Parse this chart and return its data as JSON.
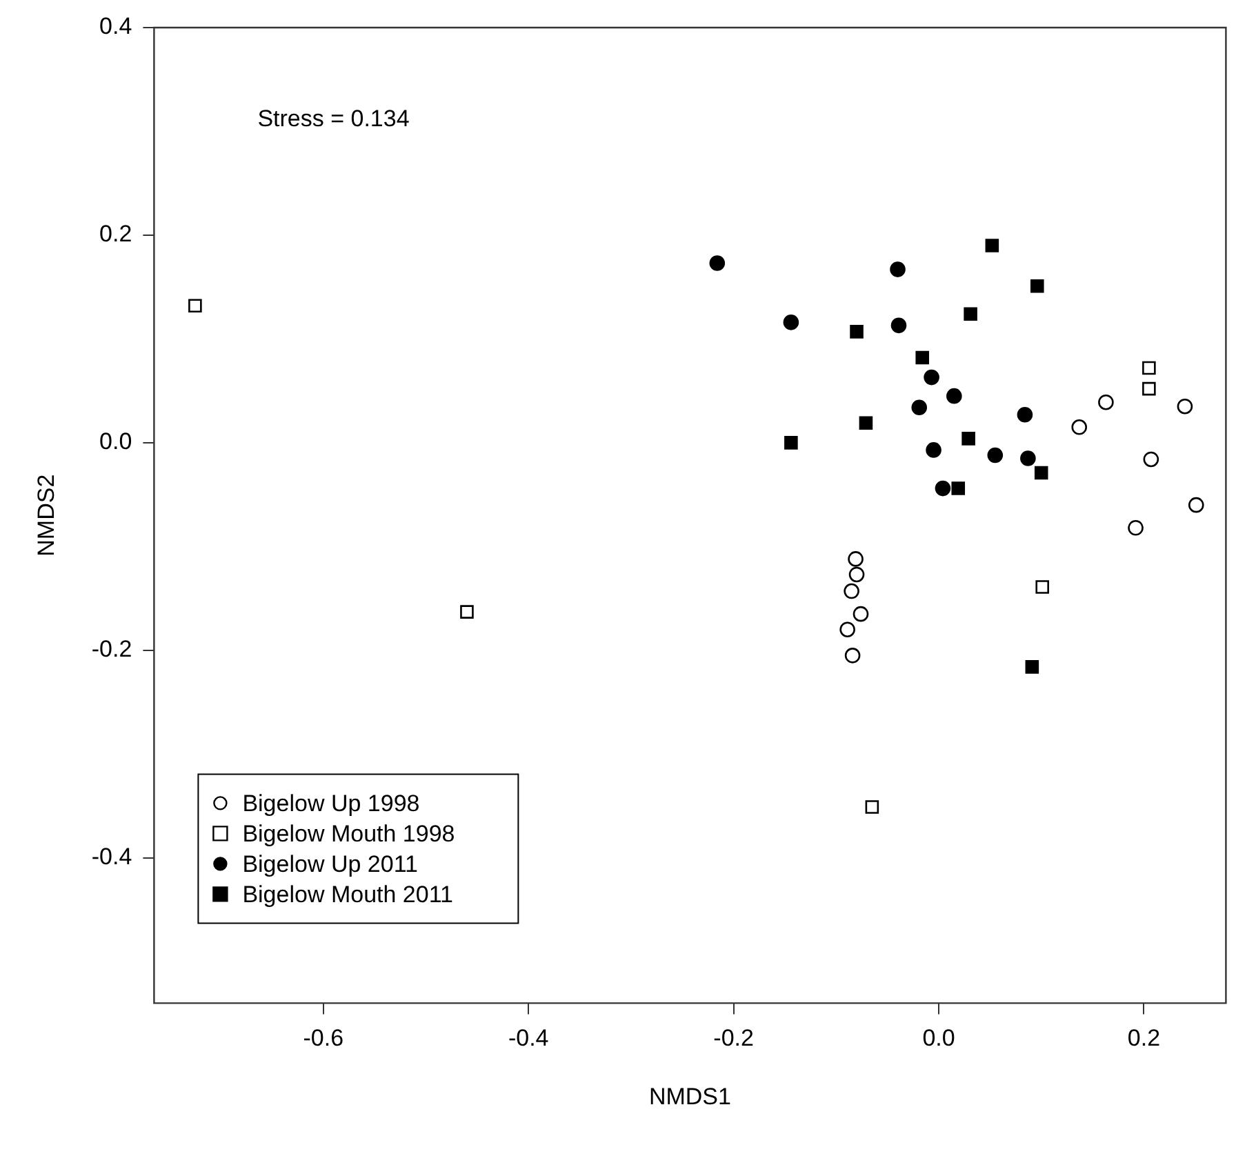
{
  "chart_data": {
    "type": "scatter",
    "xlabel": "NMDS1",
    "ylabel": "NMDS2",
    "annotations": [
      "Stress = 0.134"
    ],
    "xlim": [
      -0.765,
      0.28
    ],
    "ylim": [
      -0.54,
      0.4
    ],
    "xticks": [
      -0.6,
      -0.4,
      -0.2,
      {
        "value": 0,
        "label": "0.0"
      },
      0.2
    ],
    "yticks": [
      -0.4,
      -0.2,
      {
        "value": 0,
        "label": "0.0"
      },
      0.2,
      0.4
    ],
    "grid": false,
    "legend": "bottom left",
    "series": [
      {
        "name": "Bigelow Up 1998",
        "color": "#000000",
        "marker": "circle-open",
        "x": [
          0.163,
          0.137,
          0.24,
          0.207,
          0.251,
          0.192,
          -0.081,
          -0.08,
          -0.085,
          -0.076,
          -0.089,
          -0.084
        ],
        "values": [
          0.039,
          0.015,
          0.035,
          -0.016,
          -0.06,
          -0.082,
          -0.112,
          -0.127,
          -0.143,
          -0.165,
          -0.18,
          -0.205
        ]
      },
      {
        "name": "Bigelow Mouth 1998",
        "color": "#000000",
        "marker": "square-open",
        "x": [
          -0.725,
          -0.46,
          0.205,
          0.205,
          0.101,
          -0.065
        ],
        "values": [
          0.132,
          -0.163,
          0.072,
          0.052,
          -0.139,
          -0.351
        ]
      },
      {
        "name": "Bigelow Up 2011",
        "color": "#000000",
        "marker": "circle",
        "x": [
          -0.216,
          -0.04,
          -0.144,
          -0.039,
          -0.007,
          0.015,
          -0.019,
          0.084,
          -0.005,
          0.055,
          0.087,
          0.004
        ],
        "values": [
          0.173,
          0.167,
          0.116,
          0.113,
          0.063,
          0.045,
          0.034,
          0.027,
          -0.007,
          -0.012,
          -0.015,
          -0.044
        ]
      },
      {
        "name": "Bigelow Mouth 2011",
        "color": "#000000",
        "marker": "square",
        "x": [
          0.052,
          0.096,
          0.031,
          -0.08,
          -0.016,
          -0.071,
          -0.144,
          0.029,
          0.1,
          0.019,
          0.091
        ],
        "values": [
          0.19,
          0.151,
          0.124,
          0.107,
          0.082,
          0.019,
          0.0,
          0.004,
          -0.029,
          -0.044,
          -0.216
        ]
      }
    ]
  }
}
